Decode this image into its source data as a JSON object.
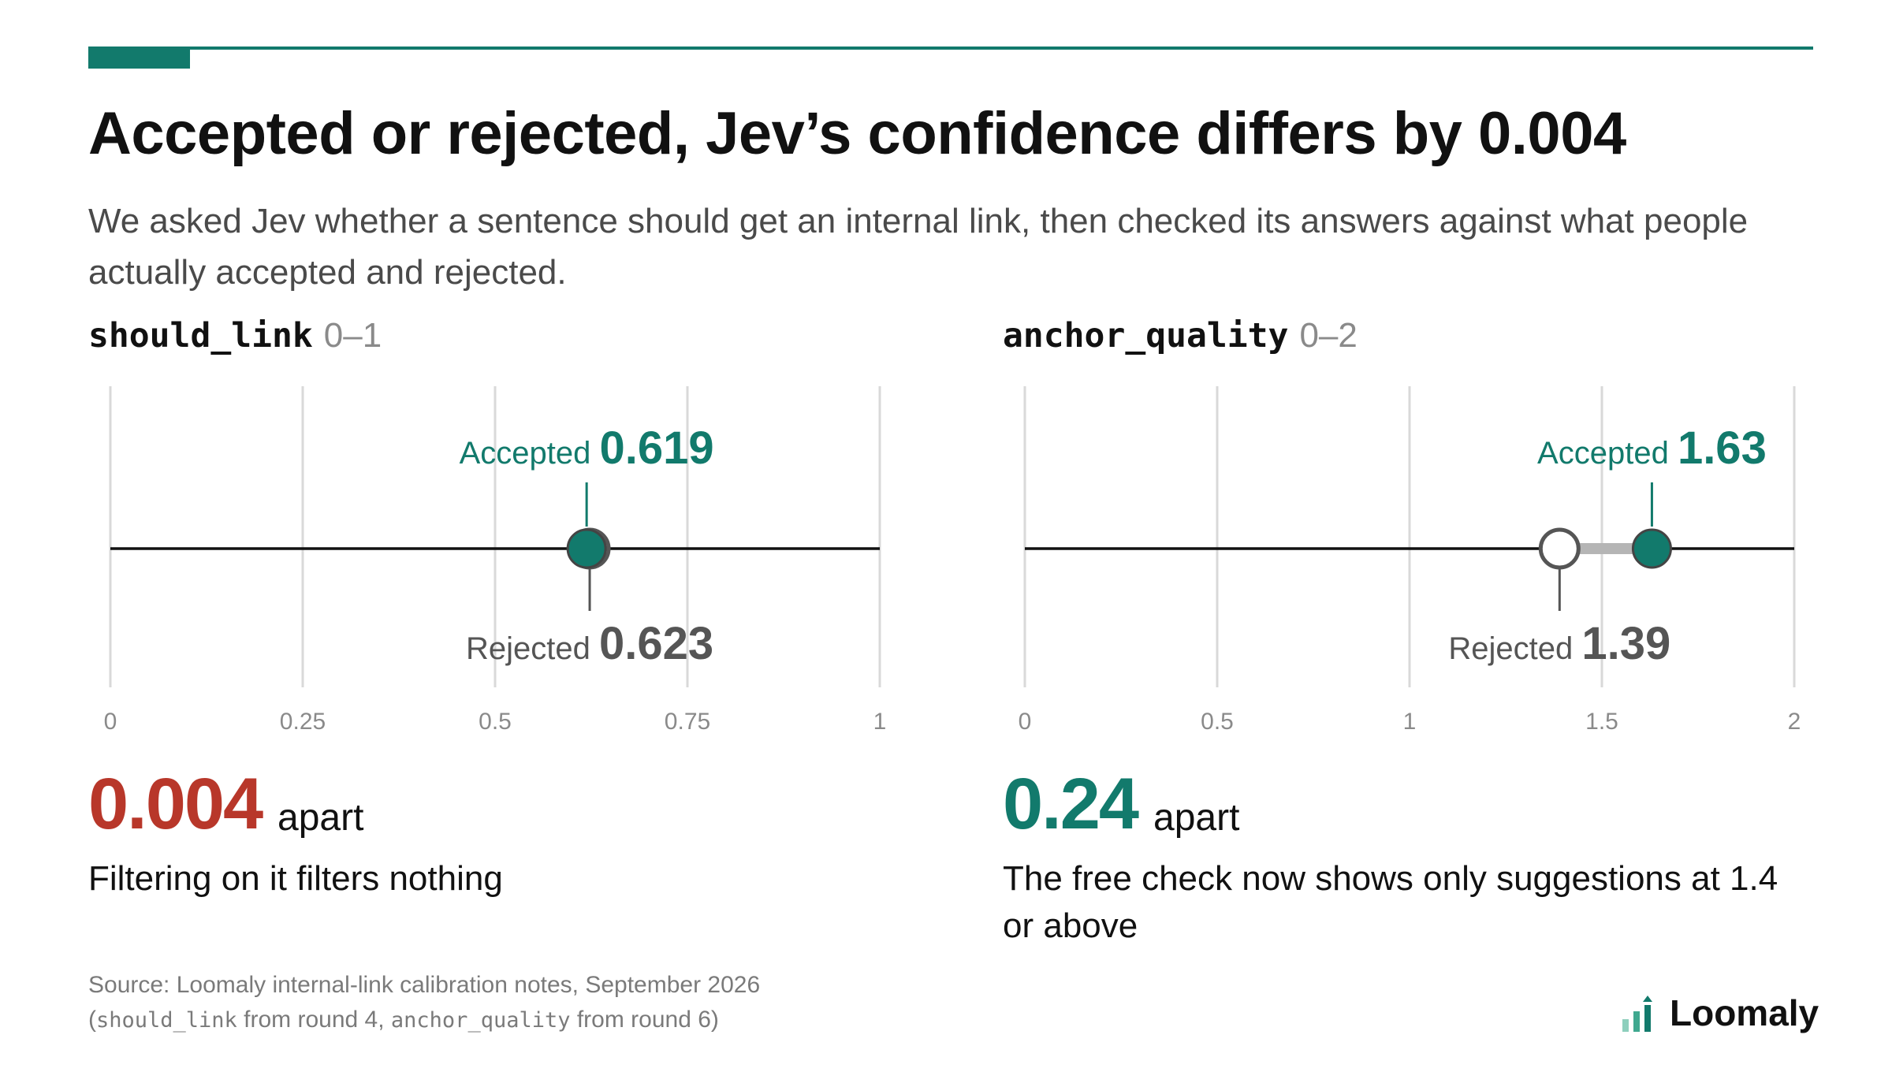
{
  "title": "Accepted or rejected, Jev’s confidence differs by 0.004",
  "subtitle": "We asked Jev whether a sentence should get an internal link, then checked its answers against what people actually accepted and rejected.",
  "colors": {
    "accent": "#127a6c",
    "alert": "#b8372a",
    "text": "#111111",
    "muted": "#8a8a8a",
    "grid": "#d9d9d9"
  },
  "chart_data": [
    {
      "type": "dot",
      "metric": "should_link",
      "range_label": "0–1",
      "xlim": [
        0,
        1
      ],
      "ticks": [
        "0",
        "0.25",
        "0.5",
        "0.75",
        "1"
      ],
      "tick_values": [
        0,
        0.25,
        0.5,
        0.75,
        1
      ],
      "accepted": {
        "label": "Accepted",
        "value": 0.619,
        "value_text": "0.619"
      },
      "rejected": {
        "label": "Rejected",
        "value": 0.623,
        "value_text": "0.623"
      },
      "difference": "0.004",
      "difference_unit": "apart",
      "caption": "Filtering on it filters nothing",
      "difference_color": "#b8372a"
    },
    {
      "type": "dot",
      "metric": "anchor_quality",
      "range_label": "0–2",
      "xlim": [
        0,
        2
      ],
      "ticks": [
        "0",
        "0.5",
        "1",
        "1.5",
        "2"
      ],
      "tick_values": [
        0,
        0.5,
        1,
        1.5,
        2
      ],
      "accepted": {
        "label": "Accepted",
        "value": 1.63,
        "value_text": "1.63"
      },
      "rejected": {
        "label": "Rejected",
        "value": 1.39,
        "value_text": "1.39"
      },
      "difference": "0.24",
      "difference_unit": "apart",
      "caption": "The free check now shows only suggestions at 1.4 or above",
      "difference_color": "#127a6c"
    }
  ],
  "source": {
    "line1": "Source: Loomaly internal-link calibration notes, September 2026",
    "line2_prefix": "(",
    "line2_metric_a": "should_link",
    "line2_mid": " from round 4, ",
    "line2_metric_b": "anchor_quality",
    "line2_suffix": " from round 6)"
  },
  "brand": {
    "name": "Loomaly",
    "icon": "bar-chart-logo-icon"
  }
}
